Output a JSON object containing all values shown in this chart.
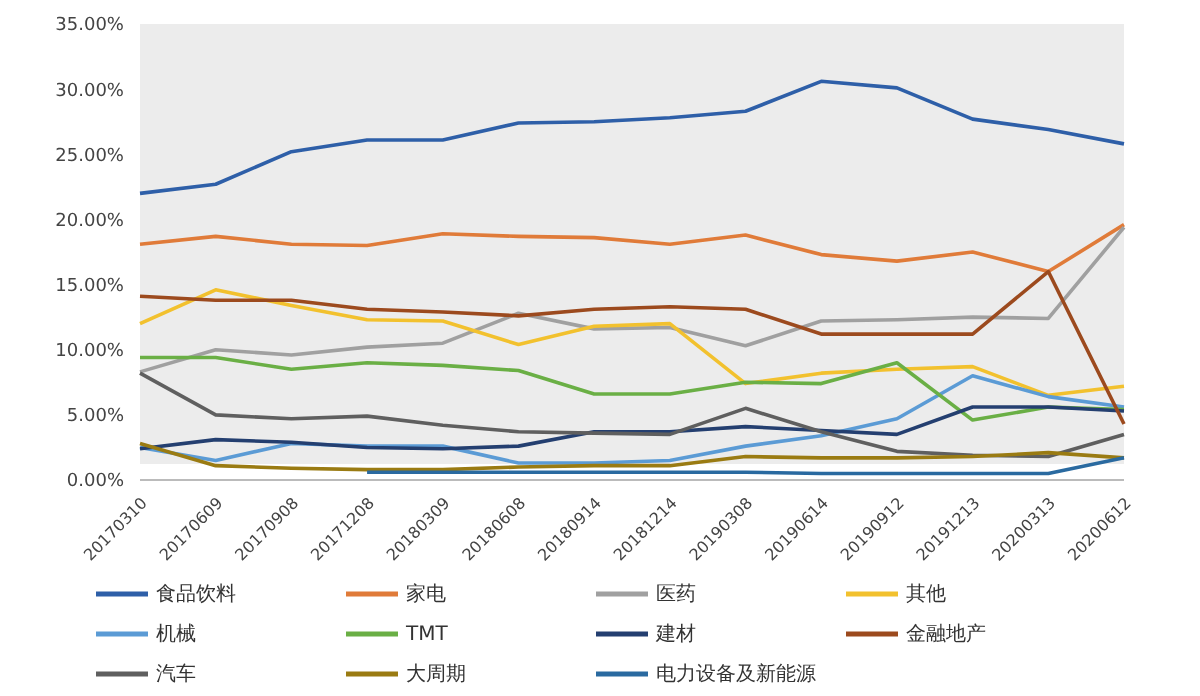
{
  "chart_data": {
    "type": "line",
    "categories": [
      "20170310",
      "20170609",
      "20170908",
      "20171208",
      "20180309",
      "20180608",
      "20180914",
      "20181214",
      "20190308",
      "20190614",
      "20190912",
      "20191213",
      "20200313",
      "20200612"
    ],
    "ylim": [
      0,
      35
    ],
    "yticks": [
      {
        "value": 0,
        "label": "0.00%"
      },
      {
        "value": 5,
        "label": "5.00%"
      },
      {
        "value": 10,
        "label": "10.00%"
      },
      {
        "value": 15,
        "label": "15.00%"
      },
      {
        "value": 20,
        "label": "20.00%"
      },
      {
        "value": 25,
        "label": "25.00%"
      },
      {
        "value": 30,
        "label": "30.00%"
      },
      {
        "value": 35,
        "label": "35.00%"
      }
    ],
    "grid": false,
    "legend": "bottom",
    "marker": "none",
    "line_style": "solid",
    "series": [
      {
        "name": "食品饮料",
        "color": "#2e5fa8",
        "values": [
          22.0,
          22.7,
          25.2,
          26.1,
          26.1,
          27.4,
          27.5,
          27.8,
          28.3,
          30.6,
          30.1,
          27.7,
          26.9,
          25.8
        ]
      },
      {
        "name": "家电",
        "color": "#e07b39",
        "values": [
          18.1,
          18.7,
          18.1,
          18.0,
          18.9,
          18.7,
          18.6,
          18.1,
          18.8,
          17.3,
          16.8,
          17.5,
          16.0,
          19.6
        ]
      },
      {
        "name": "医药",
        "color": "#a0a0a0",
        "values": [
          8.3,
          10.0,
          9.6,
          10.2,
          10.5,
          12.8,
          11.6,
          11.7,
          10.3,
          12.2,
          12.3,
          12.5,
          12.4,
          19.4
        ]
      },
      {
        "name": "其他",
        "color": "#f2c12e",
        "values": [
          12.0,
          14.6,
          13.4,
          12.3,
          12.2,
          10.4,
          11.8,
          12.0,
          7.4,
          8.2,
          8.5,
          8.7,
          6.5,
          7.2
        ]
      },
      {
        "name": "机械",
        "color": "#5b9bd5",
        "values": [
          2.5,
          1.5,
          2.8,
          2.6,
          2.6,
          1.3,
          1.3,
          1.5,
          2.6,
          3.4,
          4.7,
          8.0,
          6.4,
          5.6
        ]
      },
      {
        "name": "TMT",
        "color": "#6aaf45",
        "values": [
          9.4,
          9.4,
          8.5,
          9.0,
          8.8,
          8.4,
          6.6,
          6.6,
          7.5,
          7.4,
          9.0,
          4.6,
          5.6,
          5.4
        ]
      },
      {
        "name": "建材",
        "color": "#243f70",
        "values": [
          2.4,
          3.1,
          2.9,
          2.5,
          2.4,
          2.6,
          3.7,
          3.7,
          4.1,
          3.8,
          3.5,
          5.6,
          5.6,
          5.3
        ]
      },
      {
        "name": "金融地产",
        "color": "#9c4a1e",
        "values": [
          14.1,
          13.8,
          13.8,
          13.1,
          12.9,
          12.6,
          13.1,
          13.3,
          13.1,
          11.2,
          11.2,
          11.2,
          16.0,
          4.3
        ]
      },
      {
        "name": "汽车",
        "color": "#5f5f5f",
        "values": [
          8.2,
          5.0,
          4.7,
          4.9,
          4.2,
          3.7,
          3.6,
          3.5,
          5.5,
          3.7,
          2.2,
          1.9,
          1.8,
          3.5
        ]
      },
      {
        "name": "大周期",
        "color": "#9a7b12",
        "values": [
          2.8,
          1.1,
          0.9,
          0.8,
          0.8,
          1.0,
          1.1,
          1.1,
          1.8,
          1.7,
          1.7,
          1.8,
          2.1,
          1.7
        ]
      },
      {
        "name": "电力设备及新能源",
        "color": "#2a6aa0",
        "values": [
          null,
          null,
          null,
          0.6,
          0.6,
          0.6,
          0.6,
          0.6,
          0.6,
          0.5,
          0.5,
          0.5,
          0.5,
          1.7
        ]
      }
    ]
  }
}
